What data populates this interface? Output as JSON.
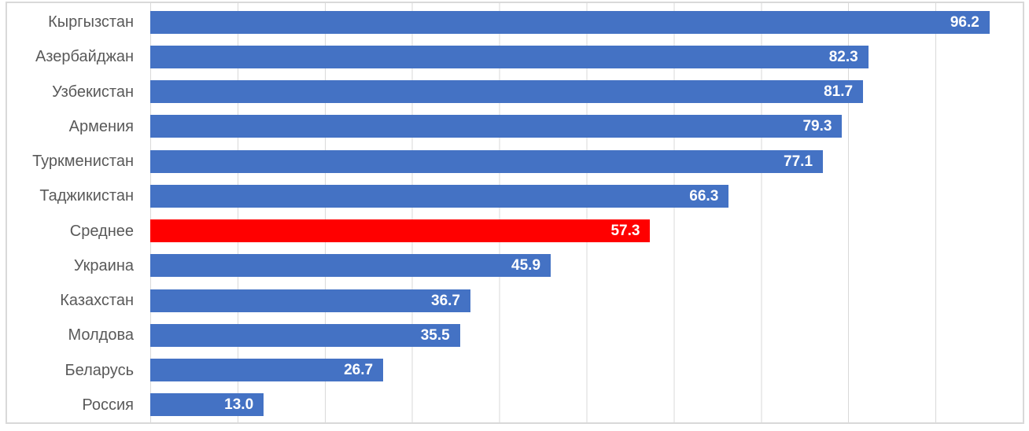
{
  "chart_data": {
    "type": "bar",
    "orientation": "horizontal",
    "title": "",
    "xlabel": "",
    "ylabel": "",
    "categories": [
      "Кыргызстан",
      "Азербайджан",
      "Узбекистан",
      "Армения",
      "Туркменистан",
      "Таджикистан",
      "Среднее",
      "Украина",
      "Казахстан",
      "Молдова",
      "Беларусь",
      "Россия"
    ],
    "values": [
      96.2,
      82.3,
      81.7,
      79.3,
      77.1,
      66.3,
      57.3,
      45.9,
      36.7,
      35.5,
      26.7,
      13.0
    ],
    "value_labels": [
      "96.2",
      "82.3",
      "81.7",
      "79.3",
      "77.1",
      "66.3",
      "57.3",
      "45.9",
      "36.7",
      "35.5",
      "26.7",
      "13.0"
    ],
    "highlighted_category": "Среднее",
    "highlight_index": 6,
    "xlim": [
      0,
      100
    ],
    "grid_step": 10,
    "grid": true,
    "legend": false,
    "value_label_position": "inside-end",
    "colors": {
      "bar": "#4472C4",
      "highlight": "#FF0000",
      "gridline": "#D9D9D9",
      "border": "#D9D9D9",
      "category_label": "#595959",
      "value_label": "#FFFFFF",
      "background": "#FFFFFF"
    }
  }
}
